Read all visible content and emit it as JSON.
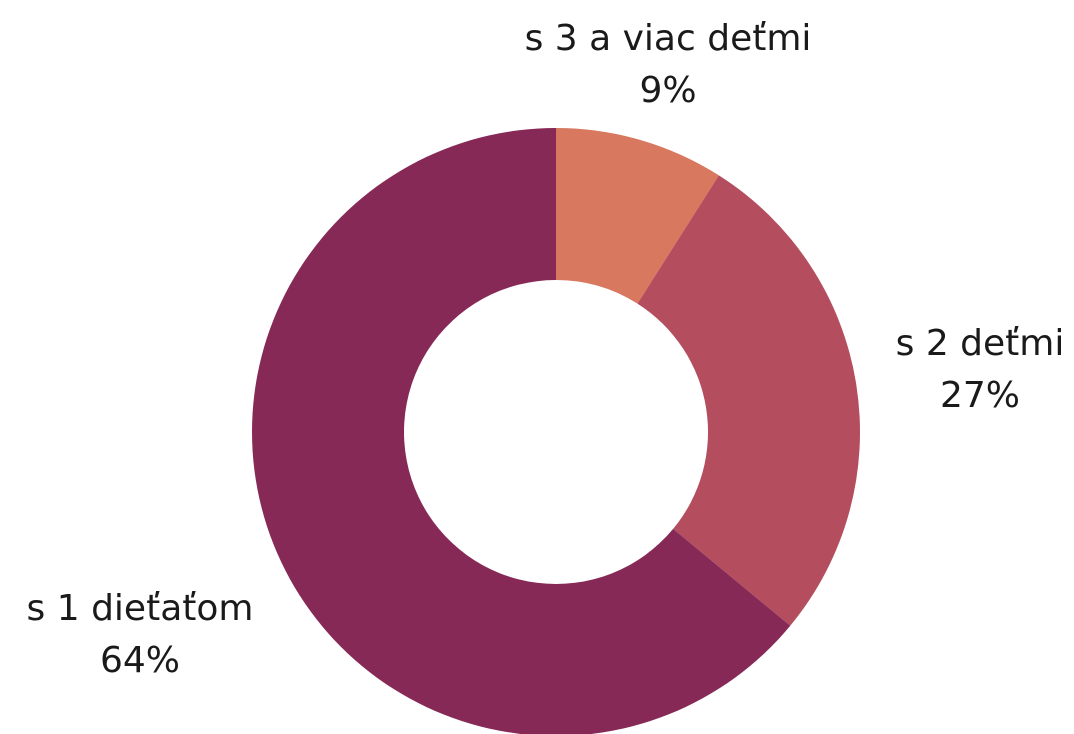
{
  "chart_data": {
    "type": "donut",
    "categories": [
      "s 3 a viac deťmi",
      "s 2 deťmi",
      "s 1 dieťaťom"
    ],
    "values": [
      9,
      27,
      64
    ],
    "value_labels": [
      "9%",
      "27%",
      "64%"
    ],
    "colors": [
      "#d7785f",
      "#b44e5e",
      "#862957"
    ]
  }
}
